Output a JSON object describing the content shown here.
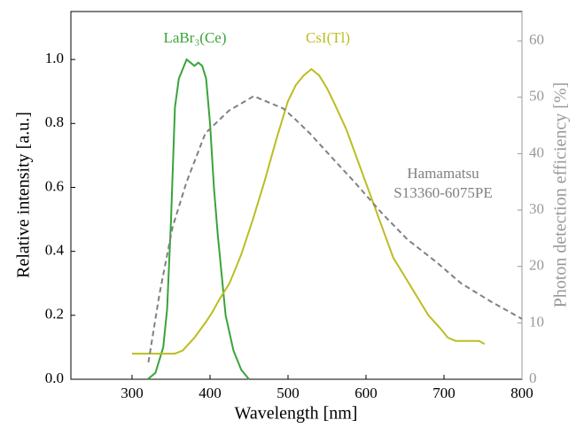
{
  "chart_data": {
    "type": "line",
    "xlabel": "Wavelength [nm]",
    "ylabel": "Relative intensity [a.u.]",
    "y2label": "Photon detection efficiency [%]",
    "xlim": [
      221.6,
      800
    ],
    "xticks": [
      300,
      400,
      500,
      600,
      700,
      800
    ],
    "ylim": [
      0,
      1.15
    ],
    "yticks": [
      {
        "value": 0,
        "label": "0.0"
      },
      0.2,
      0.4,
      0.6,
      0.8,
      {
        "value": 1,
        "label": "1.0"
      }
    ],
    "y2lim": [
      0,
      65.2
    ],
    "y2ticks": [
      0,
      10,
      20,
      30,
      40,
      50,
      60
    ],
    "series": [
      {
        "name": "LaBr₃(Ce)",
        "color": "#3aa33a",
        "x": [
          320,
          330,
          340,
          345,
          350,
          355,
          360,
          365,
          370,
          375,
          380,
          385,
          390,
          395,
          400,
          405,
          410,
          420,
          430,
          440,
          450
        ],
        "values": [
          0,
          0.02,
          0.1,
          0.22,
          0.5,
          0.85,
          0.94,
          0.97,
          1.0,
          0.99,
          0.98,
          0.99,
          0.98,
          0.94,
          0.8,
          0.6,
          0.45,
          0.2,
          0.09,
          0.03,
          0
        ]
      },
      {
        "name": "CsI(Tl)",
        "color": "#bcbd22",
        "x": [
          300,
          355,
          365,
          380,
          395,
          403,
          412,
          425,
          440,
          455,
          470,
          485,
          500,
          510,
          520,
          530,
          540,
          550,
          560,
          575,
          590,
          605,
          620,
          635,
          650,
          665,
          680,
          695,
          705,
          715,
          725,
          745,
          752
        ],
        "values": [
          0.08,
          0.08,
          0.09,
          0.13,
          0.18,
          0.21,
          0.25,
          0.3,
          0.39,
          0.5,
          0.62,
          0.75,
          0.87,
          0.92,
          0.95,
          0.97,
          0.95,
          0.91,
          0.86,
          0.78,
          0.68,
          0.58,
          0.48,
          0.38,
          0.32,
          0.26,
          0.2,
          0.16,
          0.13,
          0.12,
          0.12,
          0.12,
          0.11
        ]
      },
      {
        "name": "Hamamatsu S13360-6075PE",
        "color": "#808080",
        "axis": "y2",
        "dashed": true,
        "x": [
          321,
          335,
          352,
          370,
          394,
          424,
          456,
          494,
          510,
          528,
          555,
          585,
          620,
          653,
          690,
          722,
          760,
          800
        ],
        "values": [
          3,
          15,
          27,
          35,
          43.6,
          47.6,
          50.2,
          48,
          46,
          43.6,
          39.5,
          35,
          29.5,
          24.8,
          20.8,
          17,
          13.8,
          10.7
        ]
      }
    ]
  }
}
